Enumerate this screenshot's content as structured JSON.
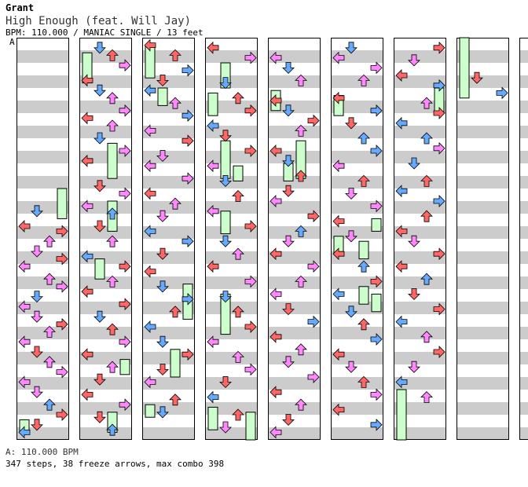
{
  "header": {
    "artist": "Grant",
    "title": "High Enough (feat. Will Jay)",
    "subtitle": "BPM: 110.000 / MANIAC SINGLE / 13 feet",
    "bpm_marker": "A"
  },
  "footer": {
    "bpm_line": "A: 110.000 BPM",
    "stats": "347 steps, 38 freeze arrows, max combo 398"
  },
  "chart_data": {
    "type": "step-chart",
    "columns": 10,
    "lanes": [
      "left",
      "down",
      "up",
      "right"
    ],
    "arrow_colors": {
      "quarter": "#ff6666",
      "eighth": "#66aaff",
      "sixteenth": "#ff88ff",
      "freeze": "#ccffcc"
    },
    "stripe_colors": [
      "#ffffff",
      "#cccccc"
    ],
    "notes": [
      [
        [
          3.45,
          1,
          "eighth"
        ],
        [
          3.75,
          0,
          "quarter"
        ],
        [
          3.85,
          3,
          "quarter"
        ],
        [
          4.05,
          2,
          "sixteenth"
        ],
        [
          4.25,
          1,
          "sixteenth"
        ],
        [
          4.4,
          3,
          "quarter"
        ],
        [
          4.55,
          0,
          "sixteenth"
        ],
        [
          4.8,
          2,
          "sixteenth"
        ],
        [
          4.95,
          3,
          "sixteenth"
        ],
        [
          5.15,
          1,
          "eighth"
        ],
        [
          5.35,
          0,
          "sixteenth"
        ],
        [
          5.55,
          1,
          "sixteenth"
        ],
        [
          5.7,
          3,
          "quarter"
        ],
        [
          5.85,
          2,
          "sixteenth"
        ],
        [
          6.05,
          0,
          "sixteenth"
        ],
        [
          6.25,
          1,
          "quarter"
        ],
        [
          6.45,
          2,
          "sixteenth"
        ],
        [
          6.65,
          3,
          "sixteenth"
        ],
        [
          6.85,
          0,
          "sixteenth"
        ],
        [
          7.05,
          1,
          "sixteenth"
        ],
        [
          7.3,
          2,
          "eighth"
        ],
        [
          7.5,
          3,
          "quarter"
        ],
        [
          7.7,
          1,
          "quarter"
        ],
        [
          7.85,
          0,
          "eighth"
        ],
        [
          7.95,
          3,
          "sixteenth"
        ]
      ],
      [
        [
          0.2,
          1,
          "eighth"
        ],
        [
          0.35,
          2,
          "quarter"
        ],
        [
          0.55,
          3,
          "sixteenth"
        ],
        [
          0.85,
          0,
          "quarter"
        ],
        [
          1.05,
          1,
          "eighth"
        ],
        [
          1.2,
          2,
          "sixteenth"
        ],
        [
          1.45,
          3,
          "sixteenth"
        ],
        [
          1.6,
          0,
          "quarter"
        ],
        [
          1.75,
          2,
          "sixteenth"
        ],
        [
          2.0,
          1,
          "eighth"
        ],
        [
          2.25,
          3,
          "sixteenth"
        ],
        [
          2.45,
          0,
          "quarter"
        ],
        [
          2.95,
          1,
          "quarter"
        ],
        [
          3.1,
          3,
          "sixteenth"
        ],
        [
          3.35,
          0,
          "sixteenth"
        ],
        [
          3.5,
          2,
          "eighth"
        ],
        [
          3.75,
          1,
          "quarter"
        ],
        [
          4.05,
          2,
          "sixteenth"
        ],
        [
          4.35,
          0,
          "eighth"
        ],
        [
          4.55,
          3,
          "quarter"
        ],
        [
          4.85,
          2,
          "sixteenth"
        ],
        [
          5.05,
          0,
          "quarter"
        ],
        [
          5.3,
          3,
          "quarter"
        ],
        [
          5.55,
          1,
          "eighth"
        ],
        [
          5.8,
          2,
          "quarter"
        ],
        [
          6.05,
          3,
          "sixteenth"
        ],
        [
          6.3,
          0,
          "quarter"
        ],
        [
          6.55,
          2,
          "sixteenth"
        ],
        [
          6.8,
          1,
          "quarter"
        ],
        [
          7.1,
          0,
          "quarter"
        ],
        [
          7.3,
          3,
          "sixteenth"
        ],
        [
          7.55,
          1,
          "quarter"
        ],
        [
          7.8,
          2,
          "eighth"
        ]
      ],
      [
        [
          0.15,
          0,
          "quarter"
        ],
        [
          0.35,
          2,
          "quarter"
        ],
        [
          0.65,
          3,
          "eighth"
        ],
        [
          0.85,
          1,
          "quarter"
        ],
        [
          1.05,
          0,
          "eighth"
        ],
        [
          1.3,
          2,
          "sixteenth"
        ],
        [
          1.55,
          3,
          "eighth"
        ],
        [
          1.85,
          0,
          "sixteenth"
        ],
        [
          2.05,
          3,
          "quarter"
        ],
        [
          2.35,
          1,
          "sixteenth"
        ],
        [
          2.55,
          0,
          "sixteenth"
        ],
        [
          2.8,
          3,
          "sixteenth"
        ],
        [
          3.1,
          0,
          "quarter"
        ],
        [
          3.3,
          2,
          "sixteenth"
        ],
        [
          3.55,
          1,
          "sixteenth"
        ],
        [
          3.85,
          0,
          "eighth"
        ],
        [
          4.05,
          3,
          "eighth"
        ],
        [
          4.3,
          1,
          "quarter"
        ],
        [
          4.65,
          0,
          "quarter"
        ],
        [
          4.95,
          1,
          "eighth"
        ],
        [
          5.2,
          3,
          "eighth"
        ],
        [
          5.45,
          2,
          "quarter"
        ],
        [
          5.75,
          0,
          "eighth"
        ],
        [
          6.05,
          1,
          "eighth"
        ],
        [
          6.3,
          3,
          "quarter"
        ],
        [
          6.6,
          1,
          "quarter"
        ],
        [
          6.85,
          0,
          "sixteenth"
        ],
        [
          7.2,
          2,
          "quarter"
        ],
        [
          7.45,
          1,
          "eighth"
        ]
      ],
      [
        [
          0.2,
          0,
          "quarter"
        ],
        [
          0.4,
          3,
          "sixteenth"
        ],
        [
          0.9,
          1,
          "eighth"
        ],
        [
          1.2,
          2,
          "quarter"
        ],
        [
          1.45,
          3,
          "quarter"
        ],
        [
          1.75,
          0,
          "eighth"
        ],
        [
          1.95,
          1,
          "quarter"
        ],
        [
          2.25,
          3,
          "quarter"
        ],
        [
          2.55,
          0,
          "sixteenth"
        ],
        [
          2.85,
          1,
          "eighth"
        ],
        [
          3.15,
          2,
          "quarter"
        ],
        [
          3.45,
          0,
          "sixteenth"
        ],
        [
          3.75,
          3,
          "quarter"
        ],
        [
          4.05,
          1,
          "eighth"
        ],
        [
          4.3,
          2,
          "sixteenth"
        ],
        [
          4.55,
          0,
          "quarter"
        ],
        [
          4.85,
          3,
          "sixteenth"
        ],
        [
          5.15,
          1,
          "eighth"
        ],
        [
          5.45,
          2,
          "quarter"
        ],
        [
          5.75,
          3,
          "quarter"
        ],
        [
          6.05,
          0,
          "sixteenth"
        ],
        [
          6.35,
          2,
          "sixteenth"
        ],
        [
          6.6,
          3,
          "sixteenth"
        ],
        [
          6.85,
          1,
          "quarter"
        ],
        [
          7.15,
          0,
          "eighth"
        ],
        [
          7.5,
          2,
          "quarter"
        ],
        [
          7.75,
          1,
          "sixteenth"
        ]
      ],
      [
        [
          0.4,
          0,
          "sixteenth"
        ],
        [
          0.6,
          1,
          "eighth"
        ],
        [
          0.85,
          2,
          "sixteenth"
        ],
        [
          1.25,
          0,
          "quarter"
        ],
        [
          1.45,
          1,
          "eighth"
        ],
        [
          1.65,
          3,
          "quarter"
        ],
        [
          1.85,
          2,
          "sixteenth"
        ],
        [
          2.25,
          0,
          "quarter"
        ],
        [
          2.45,
          1,
          "eighth"
        ],
        [
          2.75,
          2,
          "quarter"
        ],
        [
          3.05,
          1,
          "quarter"
        ],
        [
          3.25,
          0,
          "sixteenth"
        ],
        [
          3.55,
          3,
          "quarter"
        ],
        [
          3.85,
          2,
          "eighth"
        ],
        [
          4.05,
          1,
          "sixteenth"
        ],
        [
          4.3,
          0,
          "quarter"
        ],
        [
          4.55,
          3,
          "sixteenth"
        ],
        [
          4.85,
          2,
          "sixteenth"
        ],
        [
          5.1,
          0,
          "sixteenth"
        ],
        [
          5.4,
          1,
          "quarter"
        ],
        [
          5.65,
          3,
          "eighth"
        ],
        [
          5.95,
          0,
          "quarter"
        ],
        [
          6.2,
          2,
          "sixteenth"
        ],
        [
          6.45,
          1,
          "sixteenth"
        ],
        [
          6.75,
          3,
          "sixteenth"
        ],
        [
          7.05,
          0,
          "quarter"
        ],
        [
          7.3,
          2,
          "sixteenth"
        ],
        [
          7.6,
          1,
          "quarter"
        ],
        [
          7.85,
          0,
          "sixteenth"
        ]
      ],
      [
        [
          0.2,
          1,
          "eighth"
        ],
        [
          0.4,
          0,
          "sixteenth"
        ],
        [
          0.6,
          3,
          "sixteenth"
        ],
        [
          0.85,
          2,
          "sixteenth"
        ],
        [
          1.2,
          0,
          "quarter"
        ],
        [
          1.45,
          3,
          "eighth"
        ],
        [
          1.7,
          1,
          "quarter"
        ],
        [
          2.0,
          2,
          "eighth"
        ],
        [
          2.25,
          3,
          "eighth"
        ],
        [
          2.55,
          0,
          "sixteenth"
        ],
        [
          2.85,
          2,
          "quarter"
        ],
        [
          3.1,
          1,
          "sixteenth"
        ],
        [
          3.35,
          3,
          "sixteenth"
        ],
        [
          3.65,
          0,
          "quarter"
        ],
        [
          3.95,
          1,
          "sixteenth"
        ],
        [
          4.3,
          0,
          "quarter"
        ],
        [
          4.55,
          2,
          "eighth"
        ],
        [
          4.85,
          3,
          "quarter"
        ],
        [
          5.1,
          0,
          "eighth"
        ],
        [
          5.45,
          1,
          "eighth"
        ],
        [
          5.7,
          2,
          "quarter"
        ],
        [
          6.0,
          3,
          "eighth"
        ],
        [
          6.3,
          0,
          "quarter"
        ],
        [
          6.55,
          1,
          "sixteenth"
        ],
        [
          6.85,
          2,
          "quarter"
        ],
        [
          7.1,
          3,
          "sixteenth"
        ],
        [
          7.4,
          0,
          "quarter"
        ],
        [
          7.7,
          3,
          "eighth"
        ]
      ],
      [
        [
          0.2,
          3,
          "quarter"
        ],
        [
          0.45,
          1,
          "sixteenth"
        ],
        [
          0.75,
          0,
          "quarter"
        ],
        [
          0.95,
          3,
          "eighth"
        ],
        [
          1.3,
          2,
          "sixteenth"
        ],
        [
          1.5,
          3,
          "quarter"
        ],
        [
          1.7,
          0,
          "eighth"
        ],
        [
          2.0,
          2,
          "eighth"
        ],
        [
          2.2,
          3,
          "sixteenth"
        ],
        [
          2.5,
          1,
          "eighth"
        ],
        [
          2.85,
          2,
          "quarter"
        ],
        [
          3.05,
          0,
          "eighth"
        ],
        [
          3.25,
          3,
          "eighth"
        ],
        [
          3.55,
          2,
          "quarter"
        ],
        [
          3.85,
          0,
          "quarter"
        ],
        [
          4.05,
          1,
          "sixteenth"
        ],
        [
          4.3,
          3,
          "quarter"
        ],
        [
          4.55,
          0,
          "quarter"
        ],
        [
          4.8,
          2,
          "eighth"
        ],
        [
          5.1,
          1,
          "quarter"
        ],
        [
          5.4,
          3,
          "quarter"
        ],
        [
          5.65,
          0,
          "eighth"
        ],
        [
          5.95,
          2,
          "sixteenth"
        ],
        [
          6.25,
          3,
          "quarter"
        ],
        [
          6.55,
          1,
          "sixteenth"
        ],
        [
          6.85,
          0,
          "eighth"
        ],
        [
          7.15,
          2,
          "sixteenth"
        ]
      ],
      [
        [
          0.8,
          1,
          "quarter"
        ],
        [
          1.1,
          3,
          "eighth"
        ]
      ]
    ],
    "freezes": [
      [
        [
          3.0,
          3.6,
          3
        ],
        [
          7.6,
          7.85,
          0
        ]
      ],
      [
        [
          0.3,
          0.9,
          0
        ],
        [
          2.1,
          2.8,
          2
        ],
        [
          3.25,
          3.85,
          2
        ],
        [
          4.4,
          4.8,
          1
        ],
        [
          6.4,
          6.7,
          3
        ],
        [
          7.45,
          7.85,
          2
        ]
      ],
      [
        [
          0.15,
          0.8,
          0
        ],
        [
          1.0,
          1.35,
          1
        ],
        [
          4.9,
          5.6,
          3
        ],
        [
          6.2,
          6.75,
          2
        ],
        [
          7.3,
          7.55,
          0
        ]
      ],
      [
        [
          0.5,
          1.0,
          1
        ],
        [
          1.1,
          1.55,
          0
        ],
        [
          2.05,
          2.8,
          1
        ],
        [
          2.55,
          2.85,
          2
        ],
        [
          3.45,
          3.9,
          1
        ],
        [
          5.1,
          5.9,
          1
        ],
        [
          7.35,
          7.8,
          0
        ],
        [
          7.45,
          8.0,
          3
        ]
      ],
      [
        [
          1.05,
          1.45,
          0
        ],
        [
          2.5,
          2.85,
          1
        ],
        [
          2.05,
          2.8,
          2
        ]
      ],
      [
        [
          1.15,
          1.55,
          0
        ],
        [
          3.6,
          3.85,
          3
        ],
        [
          3.95,
          4.3,
          0
        ],
        [
          4.05,
          4.4,
          2
        ],
        [
          4.95,
          5.3,
          2
        ],
        [
          5.1,
          5.45,
          3
        ]
      ],
      [
        [
          1.0,
          1.5,
          3
        ],
        [
          7.0,
          8.0,
          0
        ]
      ],
      [
        [
          0.0,
          1.2,
          0
        ]
      ]
    ]
  }
}
